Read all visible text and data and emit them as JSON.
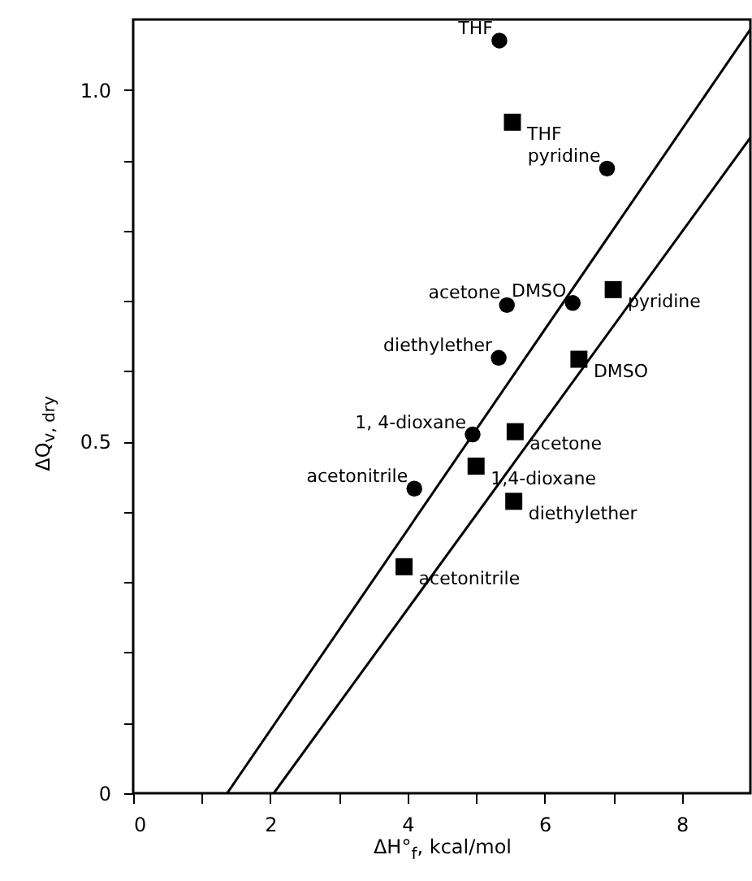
{
  "chart_data": {
    "type": "scatter",
    "xlabel": "ΔH°$_{f}$, kcal/mol",
    "ylabel": "ΔQ$_{v, dry}$",
    "xlim": [
      0,
      9
    ],
    "ylim": [
      0,
      1.1
    ],
    "xticks": [
      0,
      {
        "value": 1,
        "label": null
      },
      2,
      {
        "value": 3,
        "label": null
      },
      4,
      {
        "value": 5,
        "label": null
      },
      6,
      {
        "value": 7,
        "label": null
      },
      8
    ],
    "yticks": [
      0,
      {
        "value": 0.1,
        "label": null
      },
      {
        "value": 0.2,
        "label": null
      },
      {
        "value": 0.3,
        "label": null
      },
      {
        "value": 0.4,
        "label": null
      },
      0.5,
      {
        "value": 0.6,
        "label": null
      },
      {
        "value": 0.7,
        "label": null
      },
      {
        "value": 0.8,
        "label": null
      },
      {
        "value": 0.9,
        "label": null
      },
      {
        "value": 1,
        "label": "1.0"
      }
    ],
    "series": [
      {
        "marker": "circle",
        "color": "#000000",
        "x": [
          5.34,
          6.91,
          6.41,
          5.45,
          5.33,
          4.95,
          4.1
        ],
        "values": [
          1.07,
          0.888,
          0.697,
          0.694,
          0.619,
          0.51,
          0.433
        ]
      },
      {
        "marker": "square",
        "color": "#000000",
        "x": [
          5.53,
          7.0,
          6.5,
          5.57,
          5.0,
          5.55,
          3.95
        ],
        "values": [
          0.954,
          0.716,
          0.617,
          0.514,
          0.465,
          0.415,
          0.322
        ]
      },
      {
        "type": "line",
        "marker": "none",
        "color": "#000000",
        "x": [
          1.37,
          9
        ],
        "values": [
          0,
          1.086
        ]
      },
      {
        "type": "line",
        "marker": "none",
        "color": "#000000",
        "x": [
          2.05,
          9
        ],
        "values": [
          0,
          0.932
        ]
      }
    ],
    "annotations": [
      {
        "text": "THF",
        "x": 5.34,
        "y": 1.07
      },
      {
        "text": "pyridine",
        "x": 6.91,
        "y": 0.888
      },
      {
        "text": "DMSO",
        "x": 6.41,
        "y": 0.697
      },
      {
        "text": "acetone",
        "x": 5.45,
        "y": 0.694
      },
      {
        "text": "diethylether",
        "x": 5.33,
        "y": 0.619
      },
      {
        "text": "1, 4-dioxane",
        "x": 4.95,
        "y": 0.51
      },
      {
        "text": "acetonitrile",
        "x": 4.1,
        "y": 0.433
      },
      {
        "text": "THF",
        "x": 5.53,
        "y": 0.954
      },
      {
        "text": "pyridine",
        "x": 7.0,
        "y": 0.716
      },
      {
        "text": "DMSO",
        "x": 6.5,
        "y": 0.617
      },
      {
        "text": "acetone",
        "x": 5.57,
        "y": 0.514
      },
      {
        "text": "1,4-dioxane",
        "x": 5.0,
        "y": 0.465
      },
      {
        "text": "diethylether",
        "x": 5.55,
        "y": 0.415
      },
      {
        "text": "acetonitrile",
        "x": 3.95,
        "y": 0.322
      }
    ]
  }
}
